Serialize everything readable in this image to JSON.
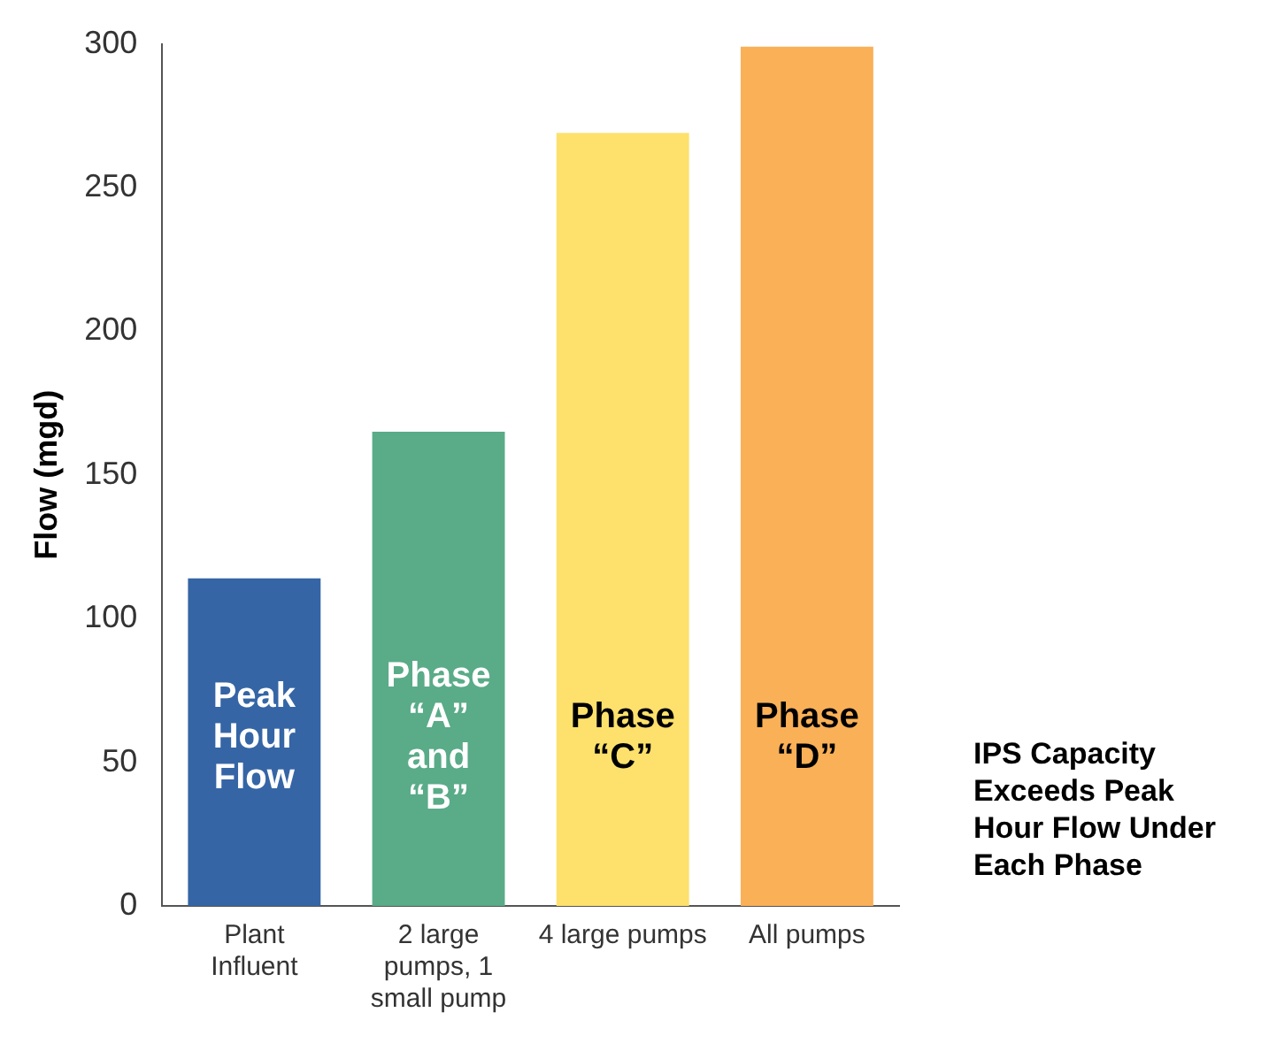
{
  "chart_data": {
    "type": "bar",
    "ylabel": "Flow (mgd)",
    "categories": [
      "Plant Influent",
      "2 large pumps, 1 small pump",
      "4 large pumps",
      "All pumps"
    ],
    "values": [
      114,
      165,
      269,
      299
    ],
    "colors": [
      "#3565a5",
      "#5aab88",
      "#fde16c",
      "#f9b057"
    ],
    "ylim": [
      0,
      300
    ],
    "yticks": [
      0,
      50,
      100,
      150,
      200,
      250,
      300
    ],
    "grid": false,
    "legend": false,
    "annotations": [
      "Peak Hour Flow",
      "Phase “A” and “B”",
      "Phase “C”",
      "Phase “D”",
      "IPS Capacity Exceeds Peak Hour Flow Under Each Phase"
    ]
  }
}
